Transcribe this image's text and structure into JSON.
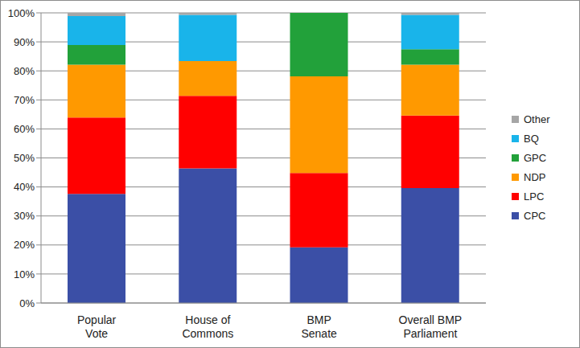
{
  "chart_data": {
    "type": "bar",
    "categories": [
      "Popular Vote",
      "House of Commons",
      "BMP Senate",
      "Overall BMP Parliament"
    ],
    "series": [
      {
        "name": "CPC",
        "color": "#3b4fa6",
        "values": [
          37.6,
          46.4,
          19.2,
          39.6
        ]
      },
      {
        "name": "LPC",
        "color": "#ff0000",
        "values": [
          26.3,
          25.0,
          25.6,
          25.0
        ]
      },
      {
        "name": "NDP",
        "color": "#ff9900",
        "values": [
          18.2,
          12.0,
          33.3,
          17.5
        ]
      },
      {
        "name": "GPC",
        "color": "#22a13a",
        "values": [
          6.8,
          0,
          21.9,
          5.4
        ]
      },
      {
        "name": "BQ",
        "color": "#19b4ea",
        "values": [
          10.0,
          15.9,
          0,
          11.8
        ]
      },
      {
        "name": "Other",
        "color": "#a6a6a6",
        "values": [
          1.1,
          0.7,
          0,
          0.7
        ]
      }
    ],
    "ylim": [
      0,
      100
    ],
    "yticks": [
      {
        "value": 0,
        "label": "0%"
      },
      {
        "value": 10,
        "label": "10%"
      },
      {
        "value": 20,
        "label": "20%"
      },
      {
        "value": 30,
        "label": "30%"
      },
      {
        "value": 40,
        "label": "40%"
      },
      {
        "value": 50,
        "label": "50%"
      },
      {
        "value": 60,
        "label": "60%"
      },
      {
        "value": 70,
        "label": "70%"
      },
      {
        "value": 80,
        "label": "80%"
      },
      {
        "value": 90,
        "label": "90%"
      },
      {
        "value": 100,
        "label": "100%"
      }
    ],
    "grid": true,
    "stacked": true,
    "legend": "right"
  }
}
